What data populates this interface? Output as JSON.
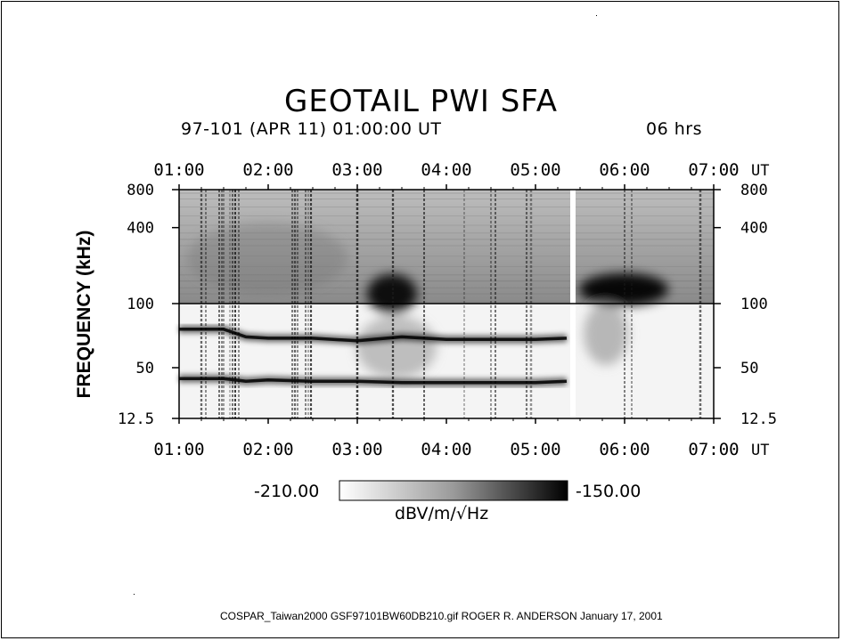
{
  "chart_data": {
    "type": "heatmap",
    "title": "GEOTAIL PWI SFA",
    "subtitle": "97-101 (APR 11) 01:00:00 UT",
    "duration": "06 hrs",
    "ylabel": "FREQUENCY (kHz)",
    "x_unit": "UT",
    "x_ticks": [
      "01:00",
      "02:00",
      "03:00",
      "04:00",
      "05:00",
      "06:00",
      "07:00"
    ],
    "xlim": [
      "01:00",
      "07:00"
    ],
    "y_ticks": [
      "12.5",
      "50",
      "100",
      "400",
      "800"
    ],
    "upper_band_khz": [
      100,
      800
    ],
    "lower_band_khz": [
      12.5,
      100
    ],
    "colorbar": {
      "min": "-210.00",
      "max": "-150.00",
      "unit": "dBV/m/√Hz",
      "cmap": "white-to-black"
    },
    "features": [
      {
        "name": "lower emission line",
        "points": [
          [
            1.0,
            42
          ],
          [
            1.5,
            42
          ],
          [
            1.75,
            40
          ],
          [
            2.0,
            41
          ],
          [
            2.5,
            40
          ],
          [
            3.0,
            40
          ],
          [
            3.5,
            39
          ],
          [
            4.0,
            39
          ],
          [
            4.5,
            39
          ],
          [
            5.0,
            39
          ],
          [
            5.35,
            40
          ]
        ]
      },
      {
        "name": "upper emission line",
        "points": [
          [
            1.0,
            80
          ],
          [
            1.5,
            80
          ],
          [
            1.75,
            74
          ],
          [
            2.0,
            73
          ],
          [
            2.5,
            73
          ],
          [
            3.0,
            71
          ],
          [
            3.5,
            74
          ],
          [
            4.0,
            72
          ],
          [
            4.5,
            72
          ],
          [
            5.0,
            72
          ],
          [
            5.35,
            73
          ]
        ]
      }
    ]
  },
  "footer": "COSPAR_Taiwan2000  GSF97101BW60DB210.gif  ROGER R. ANDERSON  January 17, 2001"
}
